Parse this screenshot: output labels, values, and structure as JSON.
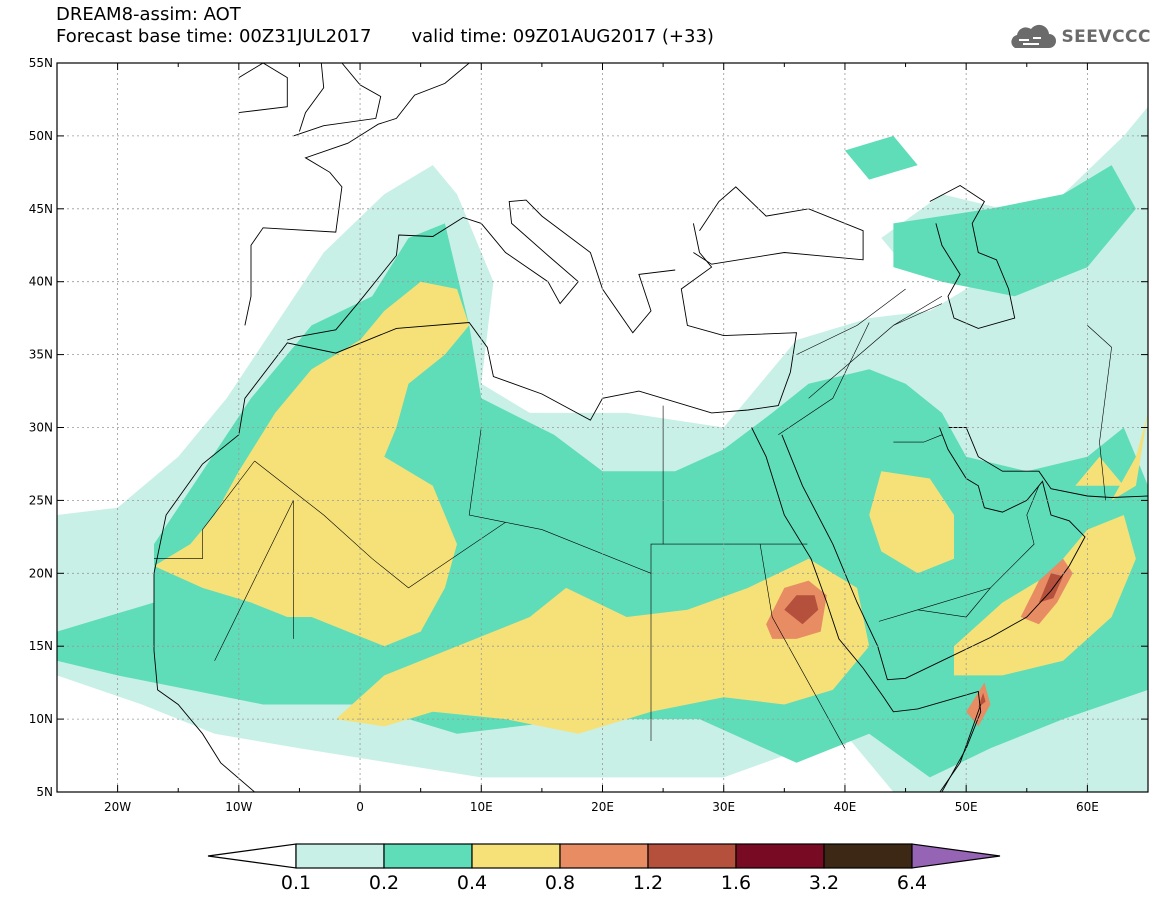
{
  "header": {
    "line1": "DREAM8-assim: AOT",
    "forecast_label": "Forecast base time: 00Z31JUL2017",
    "valid_label": "valid time: 09Z01AUG2017 (+33)"
  },
  "logo": {
    "text": "SEEVCCC",
    "icon": "cloud-icon"
  },
  "map": {
    "lon_range": [
      -25,
      65
    ],
    "lat_range": [
      5,
      55
    ],
    "lon_ticks": [
      {
        "value": -20,
        "label": "20W"
      },
      {
        "value": -10,
        "label": "10W"
      },
      {
        "value": 0,
        "label": "0"
      },
      {
        "value": 10,
        "label": "10E"
      },
      {
        "value": 20,
        "label": "20E"
      },
      {
        "value": 30,
        "label": "30E"
      },
      {
        "value": 40,
        "label": "40E"
      },
      {
        "value": 50,
        "label": "50E"
      },
      {
        "value": 60,
        "label": "60E"
      }
    ],
    "lat_ticks": [
      {
        "value": 55,
        "label": "55N"
      },
      {
        "value": 50,
        "label": "50N"
      },
      {
        "value": 45,
        "label": "45N"
      },
      {
        "value": 40,
        "label": "40N"
      },
      {
        "value": 35,
        "label": "35N"
      },
      {
        "value": 30,
        "label": "30N"
      },
      {
        "value": 25,
        "label": "25N"
      },
      {
        "value": 20,
        "label": "20N"
      },
      {
        "value": 15,
        "label": "15N"
      },
      {
        "value": 10,
        "label": "10N"
      },
      {
        "value": 5,
        "label": "5N"
      }
    ],
    "grid": true
  },
  "colorbar": {
    "colors": [
      "#ffffff",
      "#c8f0e6",
      "#5fdcb8",
      "#f5e178",
      "#e88c64",
      "#b4503c",
      "#780a23",
      "#3c2814",
      "#9664b4"
    ],
    "labels": [
      "0.1",
      "0.2",
      "0.4",
      "0.8",
      "1.2",
      "1.6",
      "3.2",
      "6.4"
    ]
  }
}
